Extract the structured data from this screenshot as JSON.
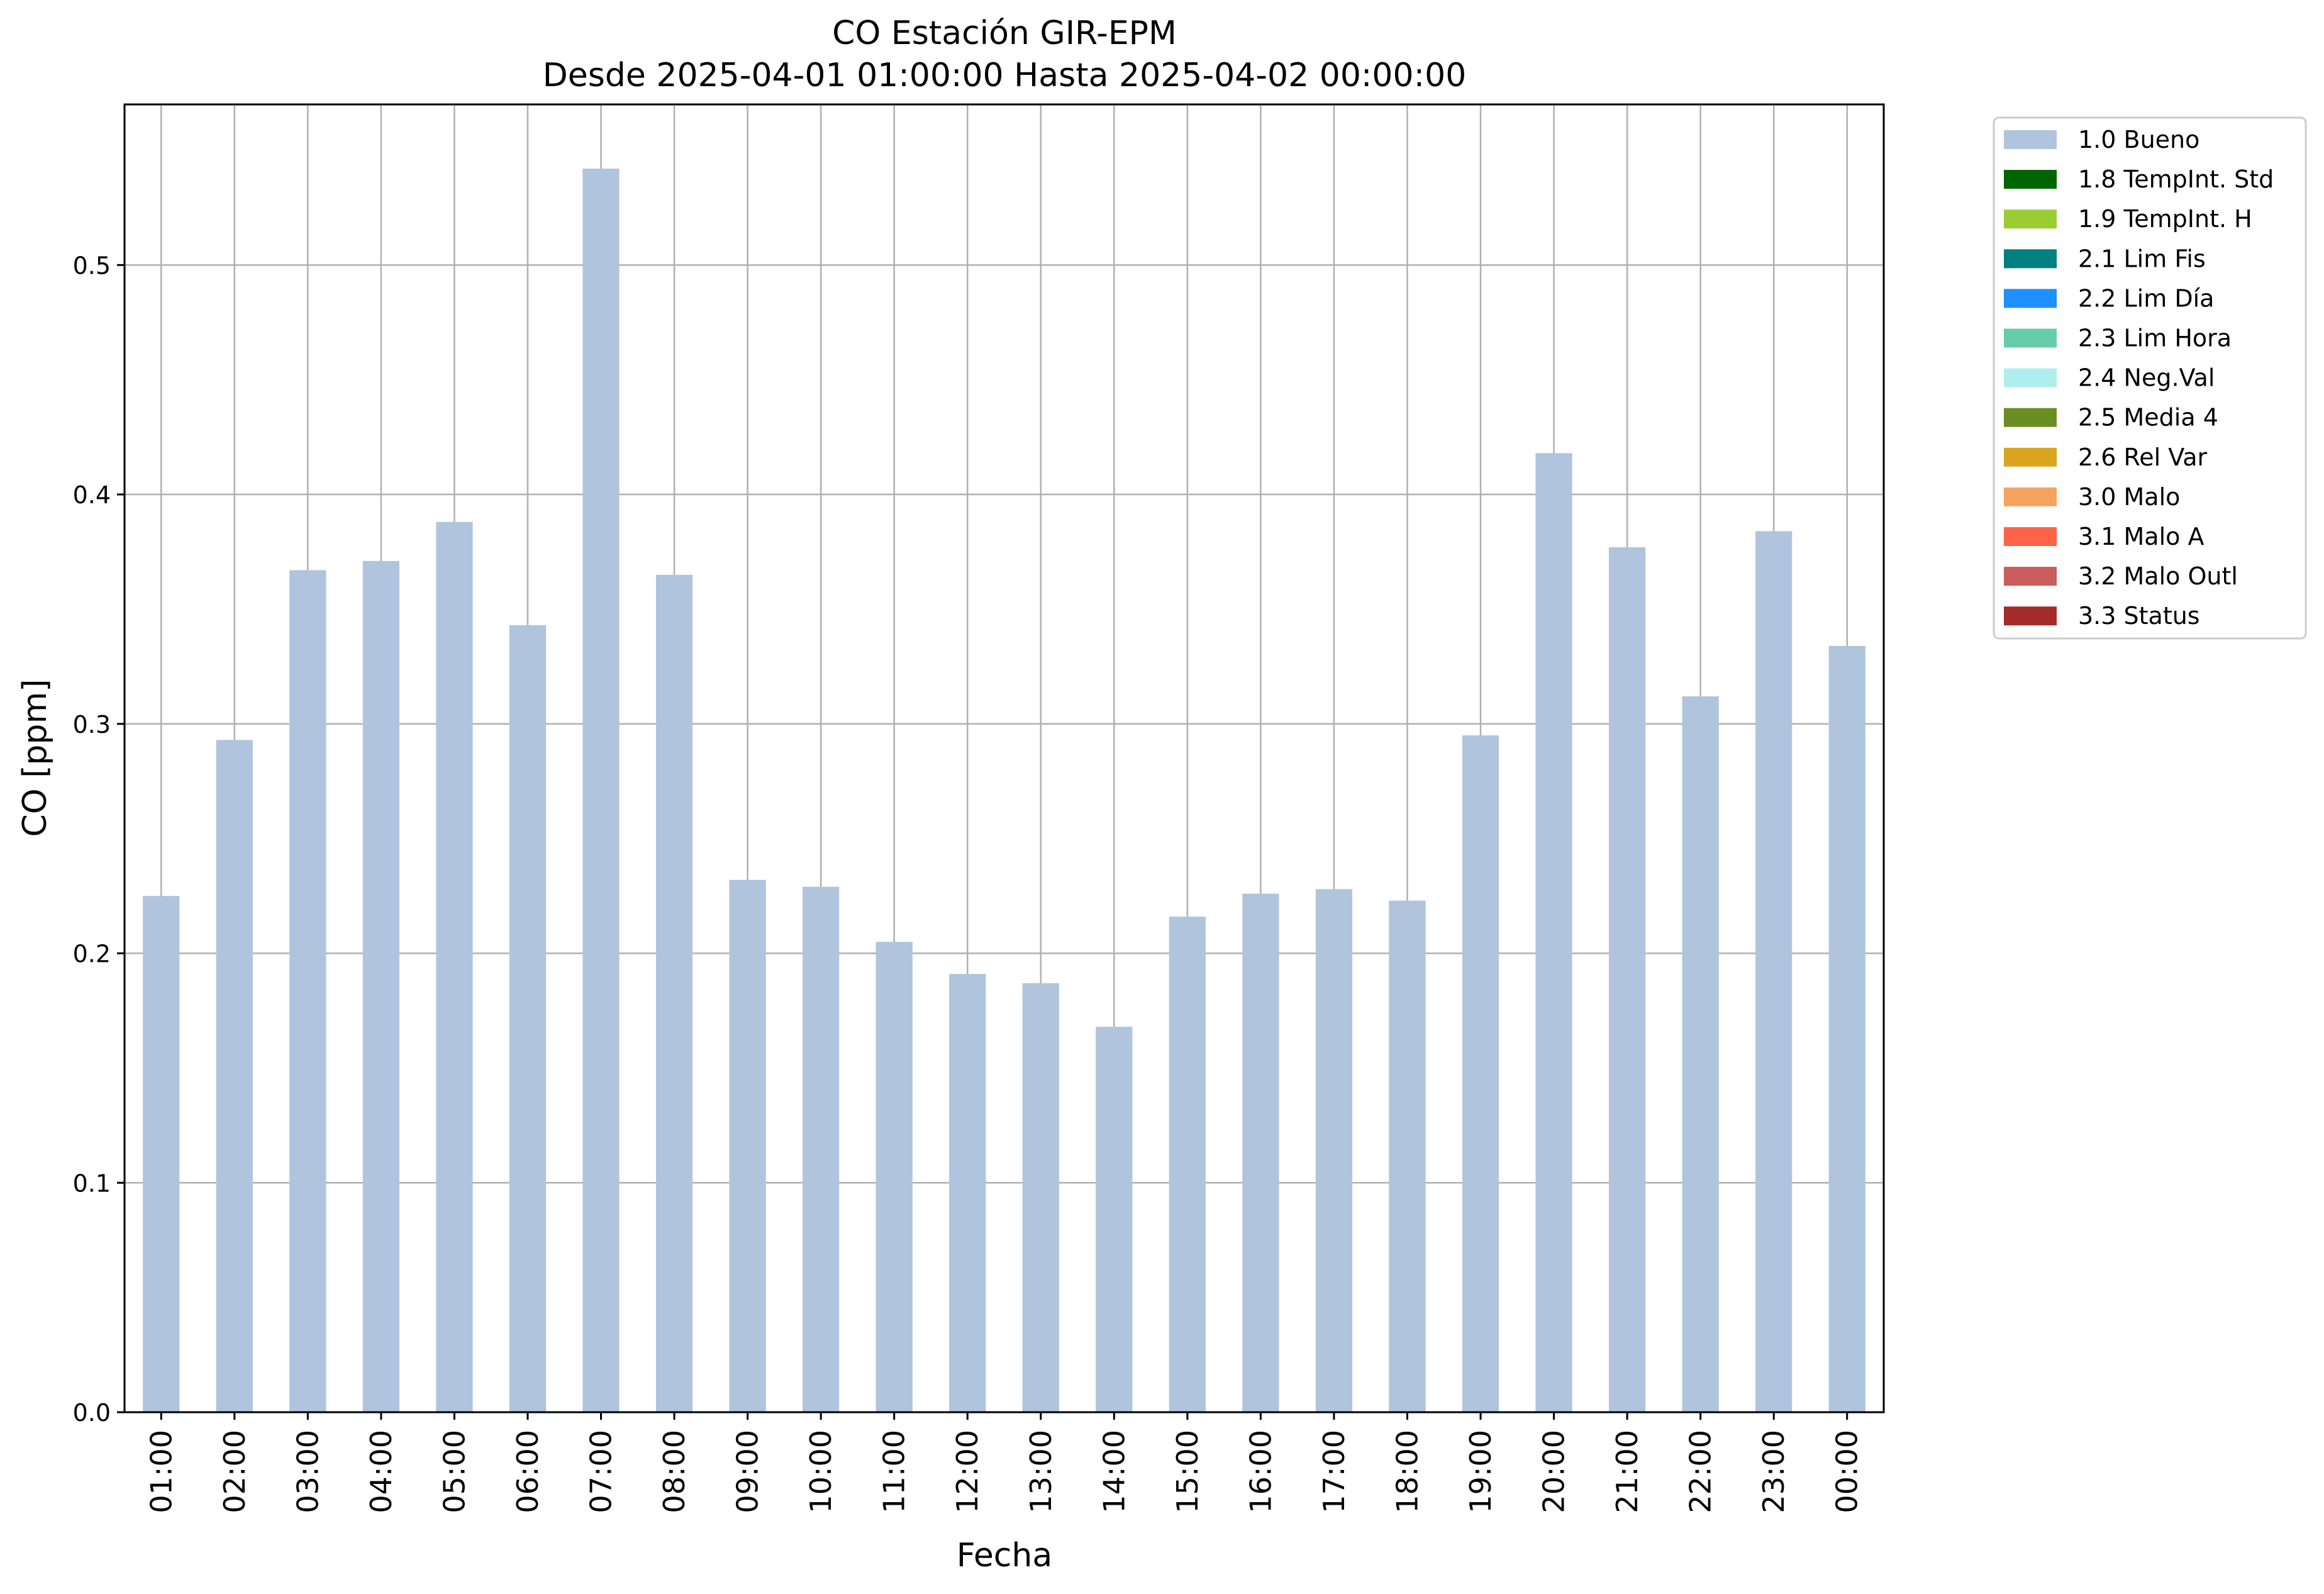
{
  "chart_data": {
    "type": "bar",
    "title": "CO Estación GIR-EPM",
    "subtitle": "Desde 2025-04-01 01:00:00 Hasta 2025-04-02 00:00:00",
    "xlabel": "Fecha",
    "ylabel": "CO [ppm]",
    "ylim": [
      0,
      0.57
    ],
    "yticks": [
      "0.0",
      "0.1",
      "0.2",
      "0.3",
      "0.4",
      "0.5"
    ],
    "grid": true,
    "legend_position": "outside top-right",
    "categories": [
      "01:00",
      "02:00",
      "03:00",
      "04:00",
      "05:00",
      "06:00",
      "07:00",
      "08:00",
      "09:00",
      "10:00",
      "11:00",
      "12:00",
      "13:00",
      "14:00",
      "15:00",
      "16:00",
      "17:00",
      "18:00",
      "19:00",
      "20:00",
      "21:00",
      "22:00",
      "23:00",
      "00:00"
    ],
    "series": [
      {
        "name": "1.0 Bueno",
        "color": "#b0c4de",
        "values": [
          0.225,
          0.293,
          0.367,
          0.371,
          0.388,
          0.343,
          0.542,
          0.365,
          0.232,
          0.229,
          0.205,
          0.191,
          0.187,
          0.168,
          0.216,
          0.226,
          0.228,
          0.223,
          0.295,
          0.418,
          0.377,
          0.312,
          0.384,
          0.334
        ]
      }
    ],
    "legend": [
      {
        "label": "1.0 Bueno",
        "color": "#b0c4de"
      },
      {
        "label": "1.8 TempInt. Std",
        "color": "#006400"
      },
      {
        "label": "1.9 TempInt. H",
        "color": "#9acd32"
      },
      {
        "label": "2.1 Lim Fis",
        "color": "#008080"
      },
      {
        "label": "2.2 Lim Día",
        "color": "#1e90ff"
      },
      {
        "label": "2.3 Lim Hora",
        "color": "#66cdaa"
      },
      {
        "label": "2.4 Neg.Val",
        "color": "#afeeee"
      },
      {
        "label": "2.5 Media 4",
        "color": "#6b8e23"
      },
      {
        "label": "2.6 Rel Var",
        "color": "#daa520"
      },
      {
        "label": "3.0 Malo",
        "color": "#f4a460"
      },
      {
        "label": "3.1 Malo A",
        "color": "#ff6347"
      },
      {
        "label": "3.2 Malo Outl",
        "color": "#cd5c5c"
      },
      {
        "label": "3.3 Status",
        "color": "#a52a2a"
      }
    ]
  }
}
